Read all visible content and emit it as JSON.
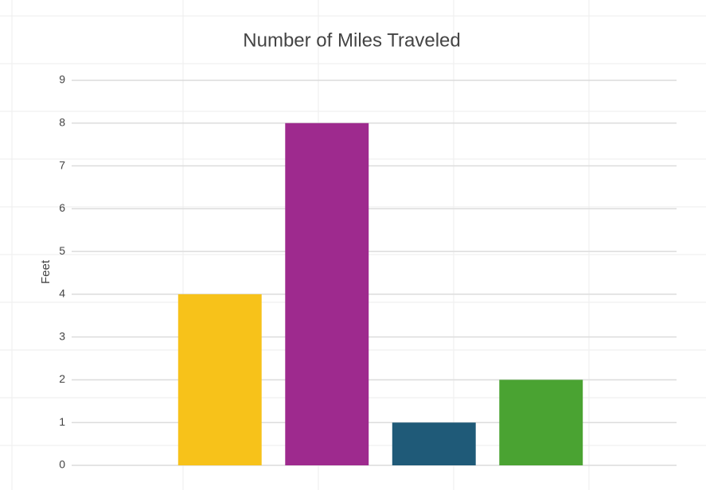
{
  "chart_data": {
    "type": "bar",
    "title": "Number of Miles Traveled",
    "y_label": "Feet",
    "categories": [
      null,
      null,
      null,
      null
    ],
    "values": [
      4,
      8,
      1,
      2
    ],
    "colors": [
      "#f7c21a",
      "#9e2a8e",
      "#1f5a78",
      "#4aa332"
    ],
    "ylim": [
      0,
      9
    ],
    "yticks": [
      0,
      1,
      2,
      3,
      4,
      5,
      6,
      7,
      8,
      9
    ],
    "grid": true
  }
}
